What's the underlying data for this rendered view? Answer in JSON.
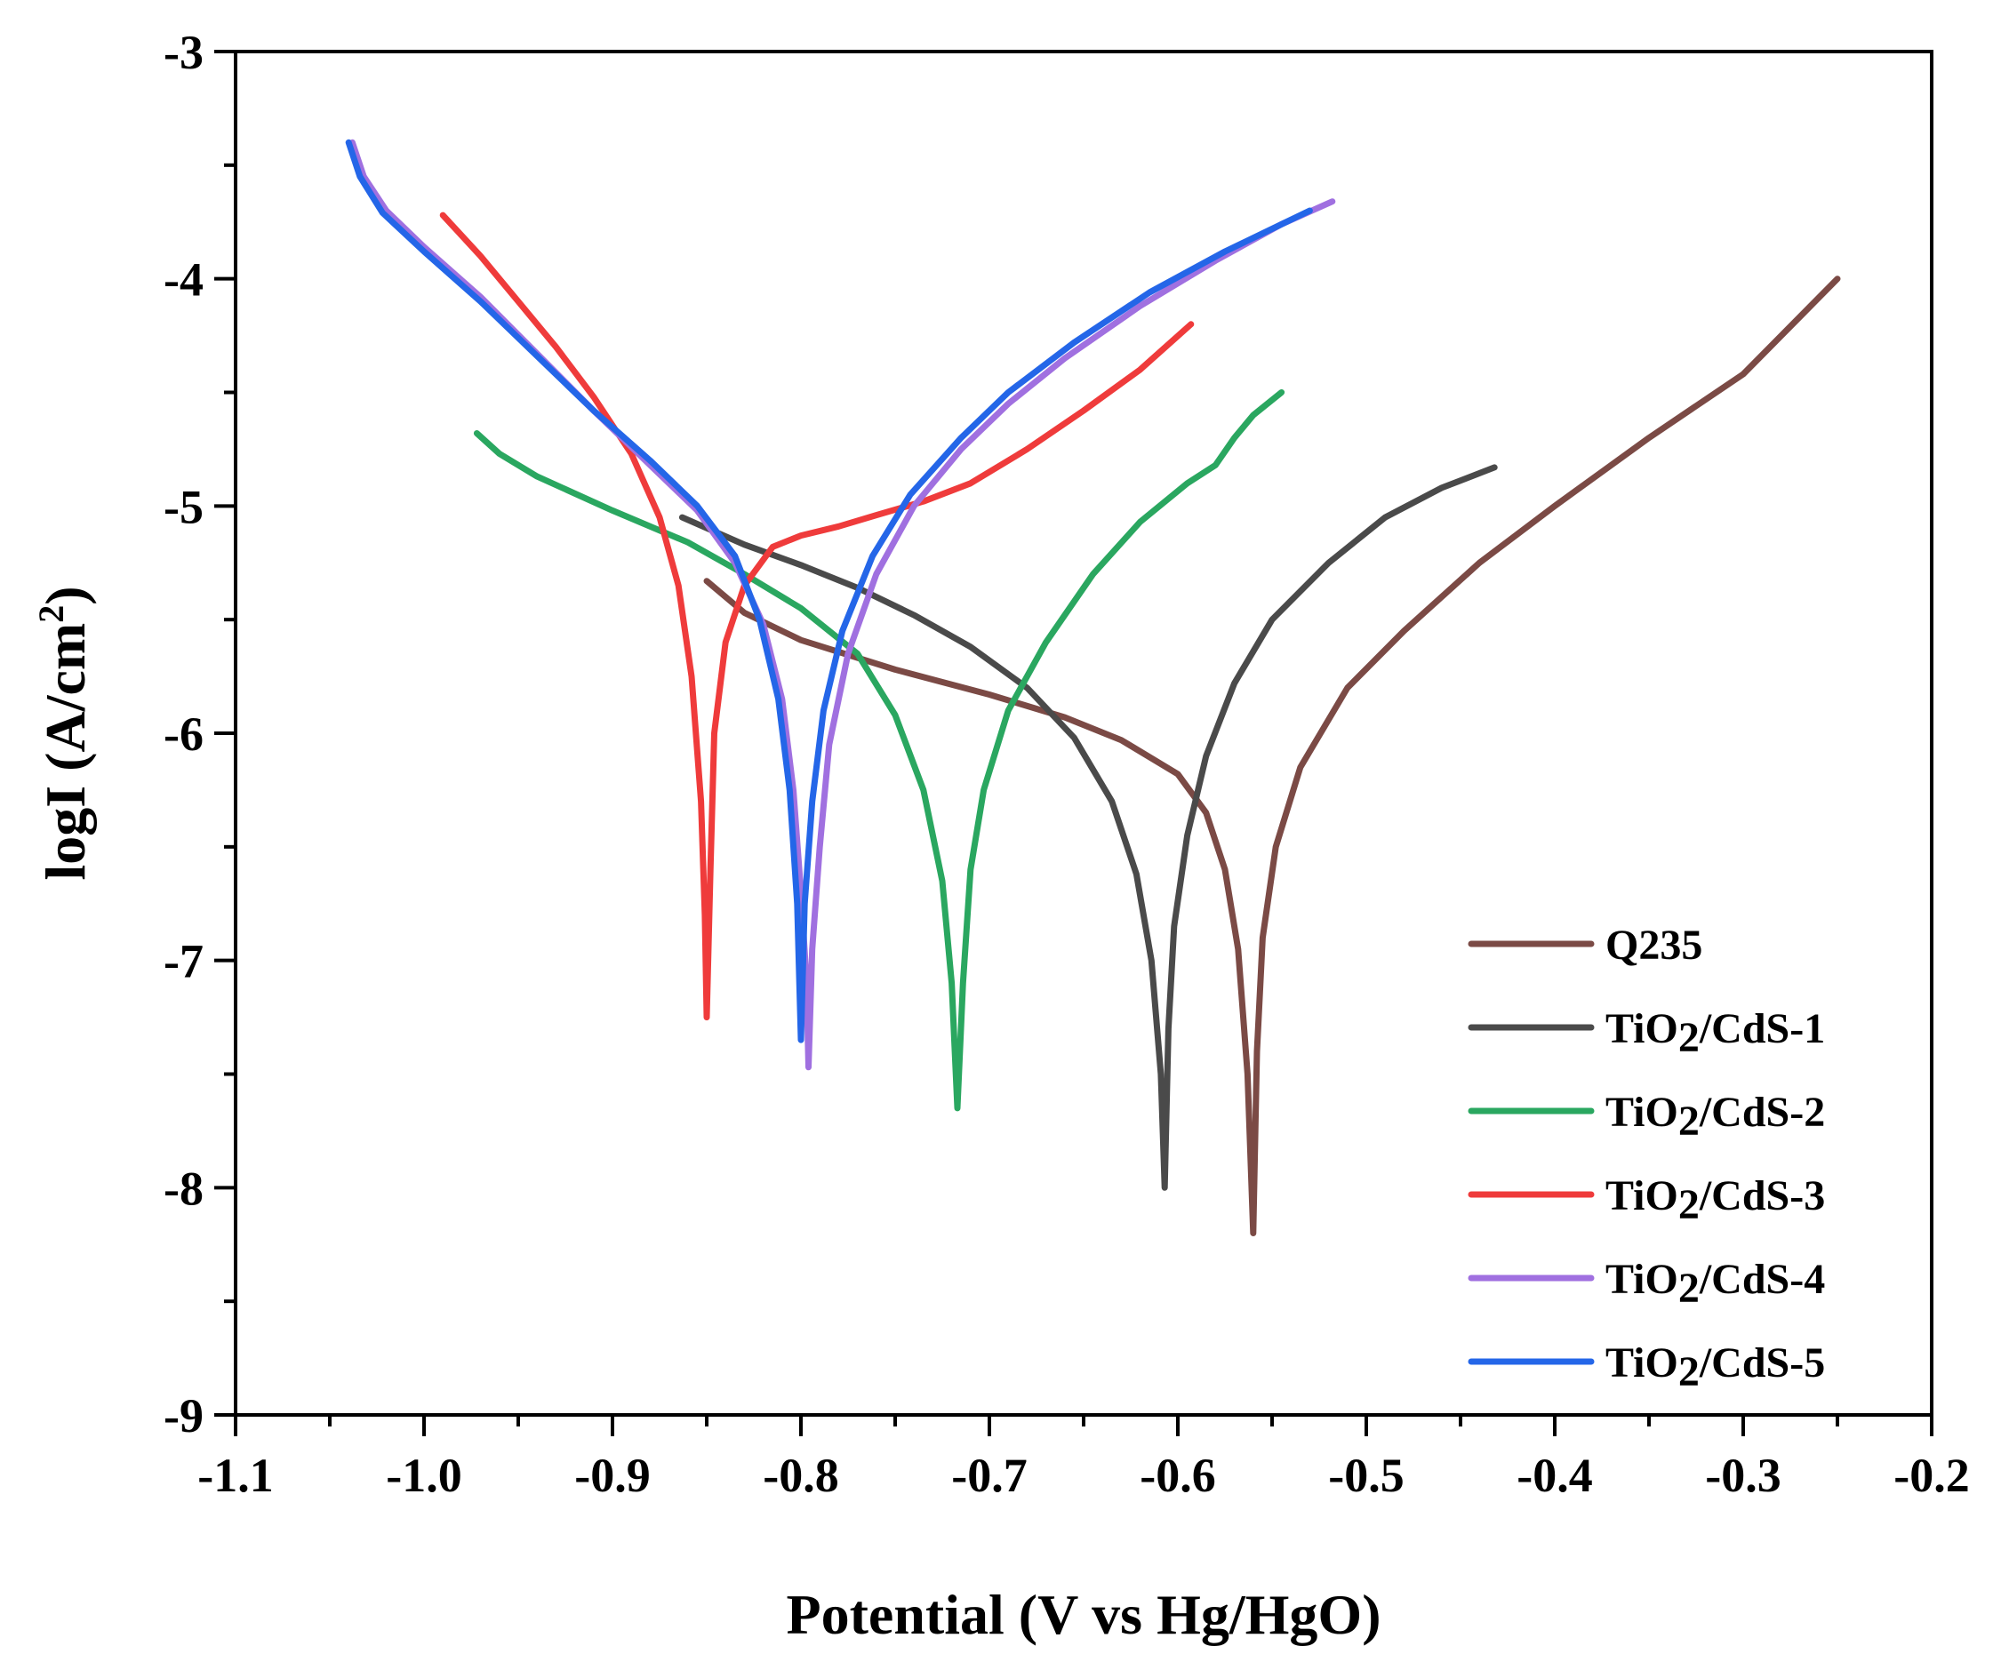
{
  "chart_data": {
    "type": "line",
    "title": "",
    "xlabel": "Potential (V vs Hg/HgO)",
    "ylabel_parts": [
      "logI (A/cm",
      "2",
      ")"
    ],
    "xlim": [
      -1.1,
      -0.2
    ],
    "ylim": [
      -9,
      -3
    ],
    "x_ticks": [
      -1.1,
      -1.0,
      -0.9,
      -0.8,
      -0.7,
      -0.6,
      -0.5,
      -0.4,
      -0.3,
      -0.2
    ],
    "x_tick_labels": [
      "-1.1",
      "-1.0",
      "-0.9",
      "-0.8",
      "-0.7",
      "-0.6",
      "-0.5",
      "-0.4",
      "-0.3",
      "-0.2"
    ],
    "y_ticks": [
      -3,
      -4,
      -5,
      -6,
      -7,
      -8,
      -9
    ],
    "y_tick_labels": [
      "-3",
      "-4",
      "-5",
      "-6",
      "-7",
      "-8",
      "-9"
    ],
    "legend_position": "bottom-right",
    "series": [
      {
        "name": "Q235",
        "name_parts": [
          "Q235"
        ],
        "color": "#7b4a45",
        "points": [
          [
            -0.85,
            -5.33
          ],
          [
            -0.83,
            -5.47
          ],
          [
            -0.8,
            -5.59
          ],
          [
            -0.75,
            -5.72
          ],
          [
            -0.7,
            -5.83
          ],
          [
            -0.66,
            -5.93
          ],
          [
            -0.63,
            -6.03
          ],
          [
            -0.6,
            -6.18
          ],
          [
            -0.585,
            -6.35
          ],
          [
            -0.575,
            -6.6
          ],
          [
            -0.568,
            -6.95
          ],
          [
            -0.563,
            -7.5
          ],
          [
            -0.56,
            -8.2
          ],
          [
            -0.558,
            -7.4
          ],
          [
            -0.555,
            -6.9
          ],
          [
            -0.548,
            -6.5
          ],
          [
            -0.535,
            -6.15
          ],
          [
            -0.51,
            -5.8
          ],
          [
            -0.48,
            -5.55
          ],
          [
            -0.44,
            -5.25
          ],
          [
            -0.4,
            -5.0
          ],
          [
            -0.35,
            -4.7
          ],
          [
            -0.3,
            -4.42
          ],
          [
            -0.25,
            -4.0
          ]
        ]
      },
      {
        "name": "TiO2/CdS-1",
        "name_parts": [
          "TiO",
          "2",
          "/CdS-1"
        ],
        "color": "#4a4a4a",
        "points": [
          [
            -0.863,
            -5.05
          ],
          [
            -0.83,
            -5.17
          ],
          [
            -0.8,
            -5.26
          ],
          [
            -0.77,
            -5.36
          ],
          [
            -0.74,
            -5.48
          ],
          [
            -0.71,
            -5.62
          ],
          [
            -0.68,
            -5.8
          ],
          [
            -0.655,
            -6.02
          ],
          [
            -0.635,
            -6.3
          ],
          [
            -0.622,
            -6.62
          ],
          [
            -0.614,
            -7.0
          ],
          [
            -0.609,
            -7.5
          ],
          [
            -0.607,
            -8.0
          ],
          [
            -0.605,
            -7.3
          ],
          [
            -0.602,
            -6.85
          ],
          [
            -0.595,
            -6.45
          ],
          [
            -0.585,
            -6.1
          ],
          [
            -0.57,
            -5.78
          ],
          [
            -0.55,
            -5.5
          ],
          [
            -0.52,
            -5.25
          ],
          [
            -0.49,
            -5.05
          ],
          [
            -0.46,
            -4.92
          ],
          [
            -0.432,
            -4.83
          ]
        ]
      },
      {
        "name": "TiO2/CdS-2",
        "name_parts": [
          "TiO",
          "2",
          "/CdS-2"
        ],
        "color": "#2aa760",
        "points": [
          [
            -0.972,
            -4.68
          ],
          [
            -0.96,
            -4.77
          ],
          [
            -0.94,
            -4.87
          ],
          [
            -0.9,
            -5.02
          ],
          [
            -0.86,
            -5.16
          ],
          [
            -0.83,
            -5.3
          ],
          [
            -0.8,
            -5.45
          ],
          [
            -0.77,
            -5.65
          ],
          [
            -0.75,
            -5.92
          ],
          [
            -0.735,
            -6.25
          ],
          [
            -0.725,
            -6.65
          ],
          [
            -0.72,
            -7.1
          ],
          [
            -0.717,
            -7.65
          ],
          [
            -0.714,
            -7.1
          ],
          [
            -0.71,
            -6.6
          ],
          [
            -0.703,
            -6.25
          ],
          [
            -0.69,
            -5.9
          ],
          [
            -0.67,
            -5.6
          ],
          [
            -0.645,
            -5.3
          ],
          [
            -0.62,
            -5.07
          ],
          [
            -0.595,
            -4.9
          ],
          [
            -0.58,
            -4.82
          ],
          [
            -0.57,
            -4.7
          ],
          [
            -0.56,
            -4.6
          ],
          [
            -0.545,
            -4.5
          ]
        ]
      },
      {
        "name": "TiO2/CdS-3",
        "name_parts": [
          "TiO",
          "2",
          "/CdS-3"
        ],
        "color": "#ef3b3b",
        "points": [
          [
            -0.99,
            -3.72
          ],
          [
            -0.97,
            -3.9
          ],
          [
            -0.95,
            -4.1
          ],
          [
            -0.93,
            -4.3
          ],
          [
            -0.91,
            -4.52
          ],
          [
            -0.89,
            -4.77
          ],
          [
            -0.875,
            -5.05
          ],
          [
            -0.865,
            -5.35
          ],
          [
            -0.858,
            -5.75
          ],
          [
            -0.853,
            -6.3
          ],
          [
            -0.851,
            -6.8
          ],
          [
            -0.85,
            -7.25
          ],
          [
            -0.848,
            -6.6
          ],
          [
            -0.846,
            -6.0
          ],
          [
            -0.84,
            -5.6
          ],
          [
            -0.83,
            -5.35
          ],
          [
            -0.815,
            -5.18
          ],
          [
            -0.8,
            -5.13
          ],
          [
            -0.78,
            -5.09
          ],
          [
            -0.76,
            -5.04
          ],
          [
            -0.735,
            -4.98
          ],
          [
            -0.71,
            -4.9
          ],
          [
            -0.68,
            -4.75
          ],
          [
            -0.65,
            -4.58
          ],
          [
            -0.62,
            -4.4
          ],
          [
            -0.593,
            -4.2
          ]
        ]
      },
      {
        "name": "TiO2/CdS-4",
        "name_parts": [
          "TiO",
          "2",
          "/CdS-4"
        ],
        "color": "#a070e0",
        "points": [
          [
            -1.038,
            -3.4
          ],
          [
            -1.032,
            -3.55
          ],
          [
            -1.02,
            -3.7
          ],
          [
            -1.0,
            -3.86
          ],
          [
            -0.97,
            -4.08
          ],
          [
            -0.94,
            -4.33
          ],
          [
            -0.91,
            -4.58
          ],
          [
            -0.88,
            -4.82
          ],
          [
            -0.855,
            -5.02
          ],
          [
            -0.835,
            -5.25
          ],
          [
            -0.82,
            -5.52
          ],
          [
            -0.81,
            -5.85
          ],
          [
            -0.804,
            -6.25
          ],
          [
            -0.8,
            -6.7
          ],
          [
            -0.797,
            -7.1
          ],
          [
            -0.796,
            -7.47
          ],
          [
            -0.794,
            -6.95
          ],
          [
            -0.79,
            -6.5
          ],
          [
            -0.785,
            -6.05
          ],
          [
            -0.775,
            -5.65
          ],
          [
            -0.76,
            -5.3
          ],
          [
            -0.74,
            -5.0
          ],
          [
            -0.715,
            -4.75
          ],
          [
            -0.69,
            -4.55
          ],
          [
            -0.66,
            -4.35
          ],
          [
            -0.62,
            -4.12
          ],
          [
            -0.58,
            -3.92
          ],
          [
            -0.545,
            -3.76
          ],
          [
            -0.518,
            -3.66
          ]
        ]
      },
      {
        "name": "TiO2/CdS-5",
        "name_parts": [
          "TiO",
          "2",
          "/CdS-5"
        ],
        "color": "#2466e8",
        "points": [
          [
            -1.04,
            -3.4
          ],
          [
            -1.034,
            -3.55
          ],
          [
            -1.022,
            -3.71
          ],
          [
            -1.0,
            -3.88
          ],
          [
            -0.97,
            -4.1
          ],
          [
            -0.94,
            -4.34
          ],
          [
            -0.91,
            -4.58
          ],
          [
            -0.88,
            -4.8
          ],
          [
            -0.855,
            -5.0
          ],
          [
            -0.835,
            -5.22
          ],
          [
            -0.822,
            -5.5
          ],
          [
            -0.812,
            -5.85
          ],
          [
            -0.806,
            -6.25
          ],
          [
            -0.802,
            -6.75
          ],
          [
            -0.8,
            -7.35
          ],
          [
            -0.798,
            -6.75
          ],
          [
            -0.794,
            -6.3
          ],
          [
            -0.788,
            -5.9
          ],
          [
            -0.778,
            -5.55
          ],
          [
            -0.762,
            -5.22
          ],
          [
            -0.742,
            -4.95
          ],
          [
            -0.715,
            -4.7
          ],
          [
            -0.69,
            -4.5
          ],
          [
            -0.655,
            -4.28
          ],
          [
            -0.615,
            -4.06
          ],
          [
            -0.575,
            -3.88
          ],
          [
            -0.53,
            -3.7
          ]
        ]
      }
    ]
  }
}
